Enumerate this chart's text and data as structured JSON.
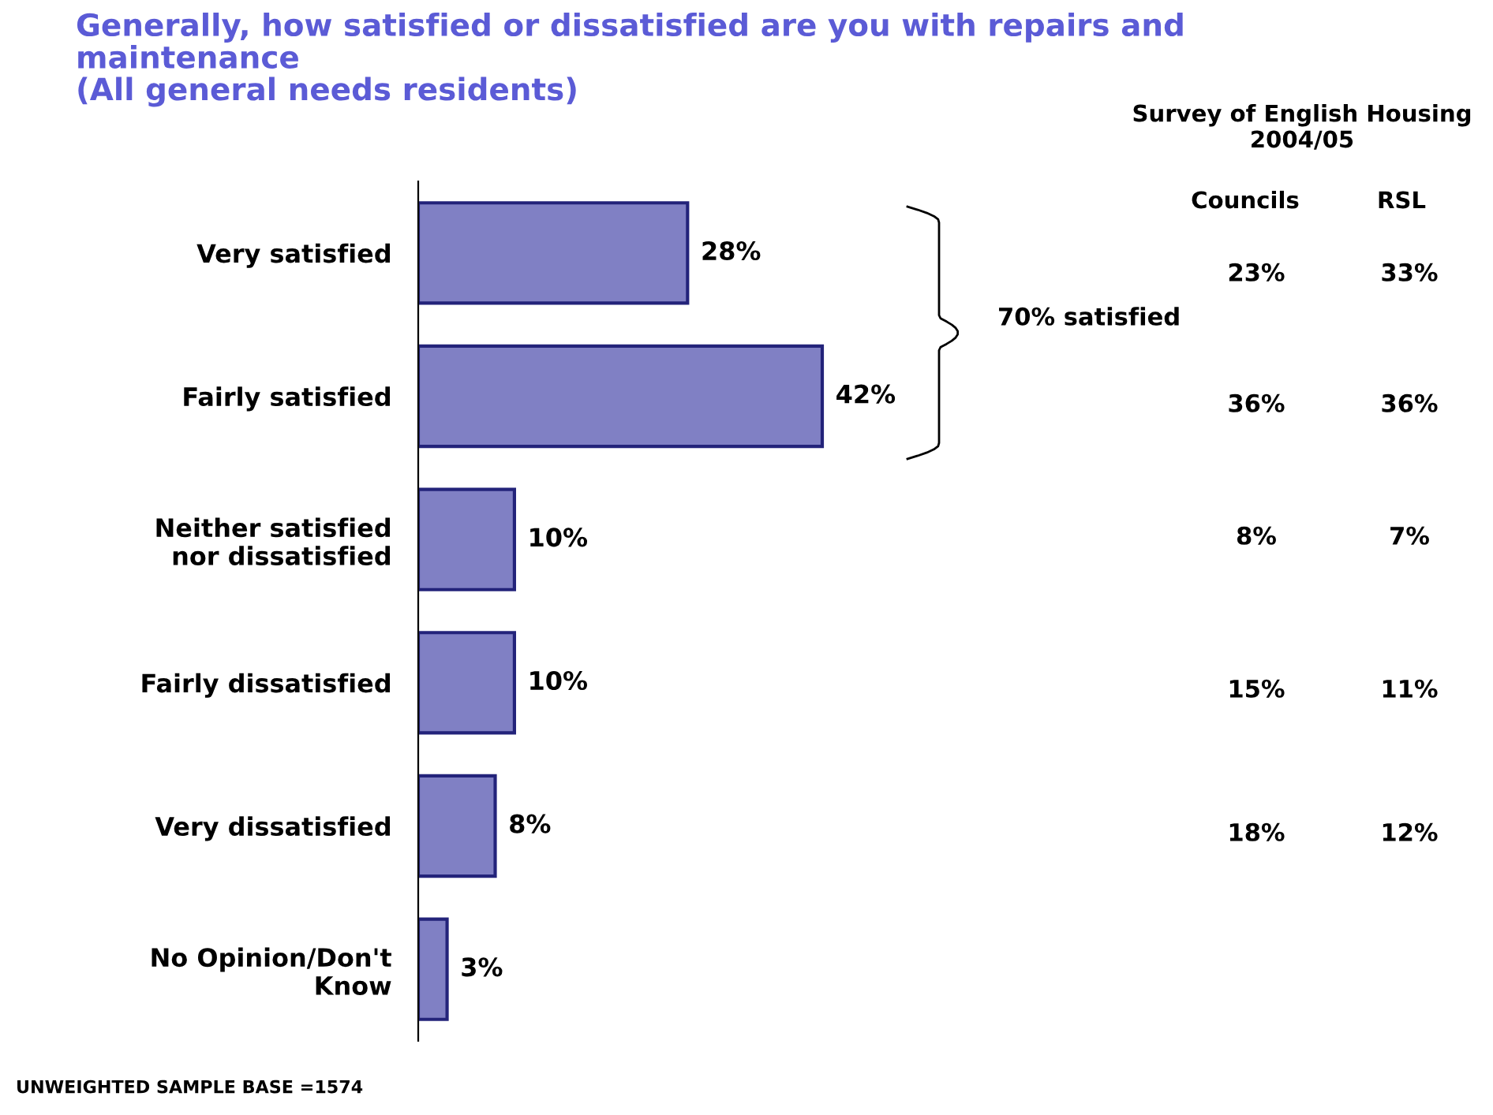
{
  "chart_data": {
    "type": "bar",
    "orientation": "horizontal",
    "title": "Generally, how satisfied or dissatisfied are you with repairs and\nmaintenance\n(All general needs residents)",
    "categories": [
      "Very satisfied",
      "Fairly satisfied",
      "Neither satisfied\nnor dissatisfied",
      "Fairly dissatisfied",
      "Very dissatisfied",
      "No Opinion/Don't\nKnow"
    ],
    "values": [
      28,
      42,
      10,
      10,
      8,
      3
    ],
    "color": "#8080c4",
    "value_labels": [
      "28%",
      "42%",
      "10%",
      "10%",
      "8%",
      "3%"
    ],
    "annotations": [
      "Survey of English Housing\n2004/05",
      "Councils",
      "RSL",
      "23%",
      "33%",
      "36%",
      "36%",
      "8%",
      "7%",
      "15%",
      "11%",
      "18%",
      "12%",
      "70% satisfied",
      "UNWEIGHTED SAMPLE BASE =1574"
    ]
  }
}
